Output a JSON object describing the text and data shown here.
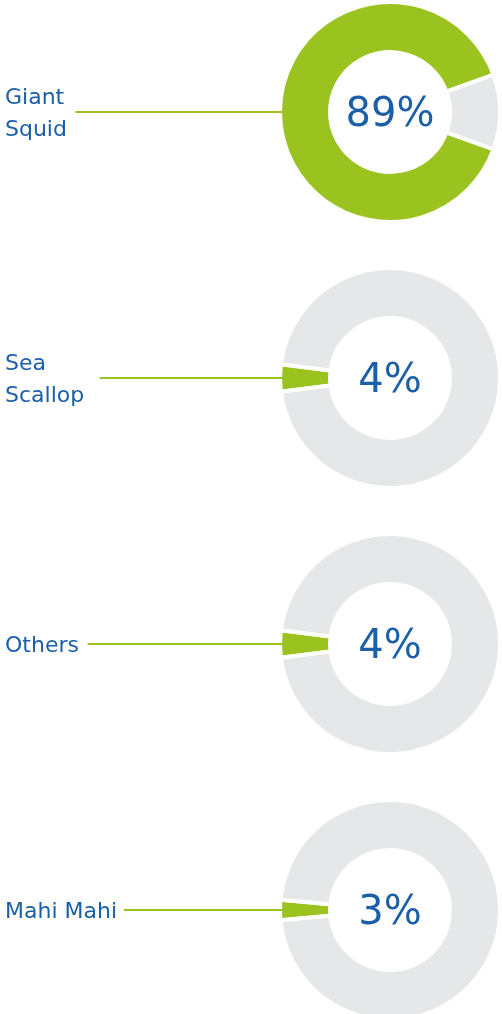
{
  "chart_data": [
    {
      "type": "donut",
      "categories": [
        "Giant Squid",
        null
      ],
      "values": [
        89,
        11
      ],
      "colors": [
        "#9bc31f",
        "#e6e7e8"
      ],
      "value_labels": [
        "89%",
        null
      ]
    },
    {
      "type": "donut",
      "categories": [
        "Sea Scallop",
        null
      ],
      "values": [
        4,
        96
      ],
      "colors": [
        "#9bc31f",
        "#e6e7e8"
      ],
      "value_labels": [
        "4%",
        null
      ]
    },
    {
      "type": "donut",
      "categories": [
        "Others",
        null
      ],
      "values": [
        4,
        96
      ],
      "colors": [
        "#9bc31f",
        "#e6e7e8"
      ],
      "value_labels": [
        "4%",
        null
      ]
    },
    {
      "type": "donut",
      "categories": [
        "Mahi Mahi",
        null
      ],
      "values": [
        3,
        97
      ],
      "colors": [
        "#9bc31f",
        "#e6e7e8"
      ],
      "value_labels": [
        "3%",
        null
      ]
    }
  ]
}
